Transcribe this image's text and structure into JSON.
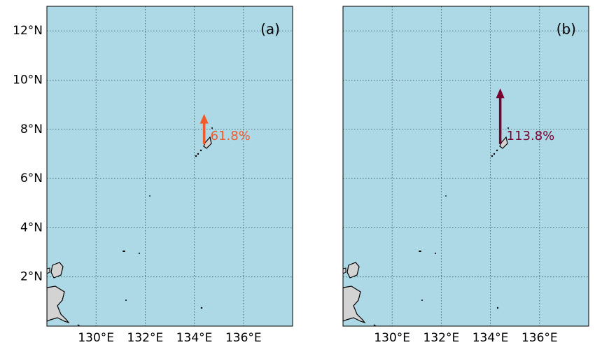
{
  "chart_data": {
    "type": "map-arrow",
    "xlim": [
      128,
      138
    ],
    "ylim": [
      0,
      13
    ],
    "xticks": [
      {
        "value": 130,
        "label": "130°E"
      },
      {
        "value": 132,
        "label": "132°E"
      },
      {
        "value": 134,
        "label": "134°E"
      },
      {
        "value": 136,
        "label": "136°E"
      }
    ],
    "yticks": [
      {
        "value": 2,
        "label": "2°N"
      },
      {
        "value": 4,
        "label": "4°N"
      },
      {
        "value": 6,
        "label": "6°N"
      },
      {
        "value": 8,
        "label": "8°N"
      },
      {
        "value": 10,
        "label": "10°N"
      },
      {
        "value": 12,
        "label": "12°N"
      }
    ],
    "grid": true,
    "ocean_color": "#add8e6",
    "land_color": "#d3d3d3",
    "panels": [
      {
        "label": "(a)",
        "show_ylabels": true,
        "origin": {
          "lon": 134.4,
          "lat": 7.4
        },
        "value": 61.8,
        "value_label": "61.8%",
        "color": "#f15a2b"
      },
      {
        "label": "(b)",
        "show_ylabels": false,
        "origin": {
          "lon": 134.4,
          "lat": 7.4
        },
        "value": 113.8,
        "value_label": "113.8%",
        "color": "#7a0030"
      }
    ]
  }
}
